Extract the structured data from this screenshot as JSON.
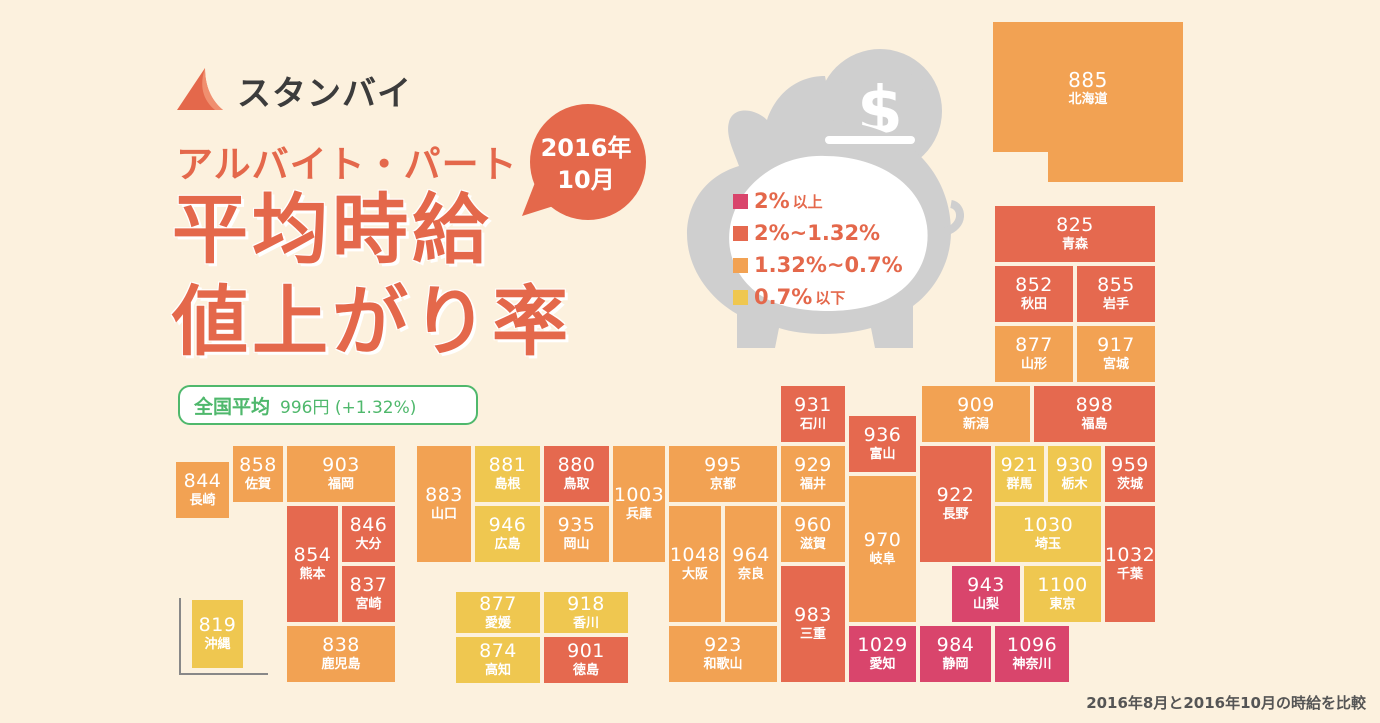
{
  "brand": {
    "logo_text": "スタンバイ",
    "logo_icon": "standby-sail-logo-icon",
    "accent": "#e4684b"
  },
  "title": {
    "subtitle": "アルバイト・パート",
    "line1": "平均時給",
    "line2": "値上がり率"
  },
  "period_bubble": {
    "year": "2016年",
    "month": "10月"
  },
  "national": {
    "label": "全国平均",
    "value": "996円 (+1.32%)"
  },
  "legend": {
    "icon": "piggy-bank-icon",
    "coin_icon": "dollar-coin-icon",
    "items": [
      {
        "text": "2%",
        "suffix": "以上",
        "color": "#d9456c"
      },
      {
        "text": "2%~1.32%",
        "suffix": "",
        "color": "#e5694f"
      },
      {
        "text": "1.32%~0.7%",
        "suffix": "",
        "color": "#f2a253"
      },
      {
        "text": "0.7%",
        "suffix": "以下",
        "color": "#efc750"
      }
    ]
  },
  "prefectures": [
    {
      "id": "hokkaido",
      "name": "北海道",
      "value": "885",
      "tier": 2
    },
    {
      "id": "aomori",
      "name": "青森",
      "value": "825",
      "tier": 1
    },
    {
      "id": "akita",
      "name": "秋田",
      "value": "852",
      "tier": 1
    },
    {
      "id": "iwate",
      "name": "岩手",
      "value": "855",
      "tier": 1
    },
    {
      "id": "yamagata",
      "name": "山形",
      "value": "877",
      "tier": 2
    },
    {
      "id": "miyagi",
      "name": "宮城",
      "value": "917",
      "tier": 2
    },
    {
      "id": "niigata",
      "name": "新潟",
      "value": "909",
      "tier": 2
    },
    {
      "id": "fukushima",
      "name": "福島",
      "value": "898",
      "tier": 1
    },
    {
      "id": "ishikawa",
      "name": "石川",
      "value": "931",
      "tier": 1
    },
    {
      "id": "toyama",
      "name": "富山",
      "value": "936",
      "tier": 1
    },
    {
      "id": "fukui",
      "name": "福井",
      "value": "929",
      "tier": 2
    },
    {
      "id": "nagano",
      "name": "長野",
      "value": "922",
      "tier": 1
    },
    {
      "id": "gunma",
      "name": "群馬",
      "value": "921",
      "tier": 3
    },
    {
      "id": "tochigi",
      "name": "栃木",
      "value": "930",
      "tier": 3
    },
    {
      "id": "ibaraki",
      "name": "茨城",
      "value": "959",
      "tier": 1
    },
    {
      "id": "gifu",
      "name": "岐阜",
      "value": "970",
      "tier": 2
    },
    {
      "id": "saitama",
      "name": "埼玉",
      "value": "1030",
      "tier": 3
    },
    {
      "id": "chiba",
      "name": "千葉",
      "value": "1032",
      "tier": 1
    },
    {
      "id": "yamanashi",
      "name": "山梨",
      "value": "943",
      "tier": 0
    },
    {
      "id": "tokyo",
      "name": "東京",
      "value": "1100",
      "tier": 3
    },
    {
      "id": "kyoto",
      "name": "京都",
      "value": "995",
      "tier": 2
    },
    {
      "id": "shiga",
      "name": "滋賀",
      "value": "960",
      "tier": 2
    },
    {
      "id": "osaka",
      "name": "大阪",
      "value": "1048",
      "tier": 2
    },
    {
      "id": "nara",
      "name": "奈良",
      "value": "964",
      "tier": 2
    },
    {
      "id": "mie",
      "name": "三重",
      "value": "983",
      "tier": 1
    },
    {
      "id": "wakayama",
      "name": "和歌山",
      "value": "923",
      "tier": 2
    },
    {
      "id": "aichi",
      "name": "愛知",
      "value": "1029",
      "tier": 0
    },
    {
      "id": "shizuoka",
      "name": "静岡",
      "value": "984",
      "tier": 0
    },
    {
      "id": "kanagawa",
      "name": "神奈川",
      "value": "1096",
      "tier": 0
    },
    {
      "id": "hyogo",
      "name": "兵庫",
      "value": "1003",
      "tier": 2
    },
    {
      "id": "tottori",
      "name": "鳥取",
      "value": "880",
      "tier": 1
    },
    {
      "id": "shimane",
      "name": "島根",
      "value": "881",
      "tier": 3
    },
    {
      "id": "okayama",
      "name": "岡山",
      "value": "935",
      "tier": 2
    },
    {
      "id": "hiroshima",
      "name": "広島",
      "value": "946",
      "tier": 3
    },
    {
      "id": "yamaguchi",
      "name": "山口",
      "value": "883",
      "tier": 2
    },
    {
      "id": "ehime",
      "name": "愛媛",
      "value": "877",
      "tier": 3
    },
    {
      "id": "kagawa",
      "name": "香川",
      "value": "918",
      "tier": 3
    },
    {
      "id": "kochi",
      "name": "高知",
      "value": "874",
      "tier": 3
    },
    {
      "id": "tokushima",
      "name": "徳島",
      "value": "901",
      "tier": 1
    },
    {
      "id": "fukuoka",
      "name": "福岡",
      "value": "903",
      "tier": 2
    },
    {
      "id": "saga",
      "name": "佐賀",
      "value": "858",
      "tier": 2
    },
    {
      "id": "nagasaki",
      "name": "長崎",
      "value": "844",
      "tier": 2
    },
    {
      "id": "oita",
      "name": "大分",
      "value": "846",
      "tier": 1
    },
    {
      "id": "kumamoto",
      "name": "熊本",
      "value": "854",
      "tier": 1
    },
    {
      "id": "miyazaki",
      "name": "宮崎",
      "value": "837",
      "tier": 1
    },
    {
      "id": "kagoshima",
      "name": "鹿児島",
      "value": "838",
      "tier": 2
    },
    {
      "id": "okinawa",
      "name": "沖縄",
      "value": "819",
      "tier": 3
    }
  ],
  "footnote": "2016年8月と2016年10月の時給を比較"
}
